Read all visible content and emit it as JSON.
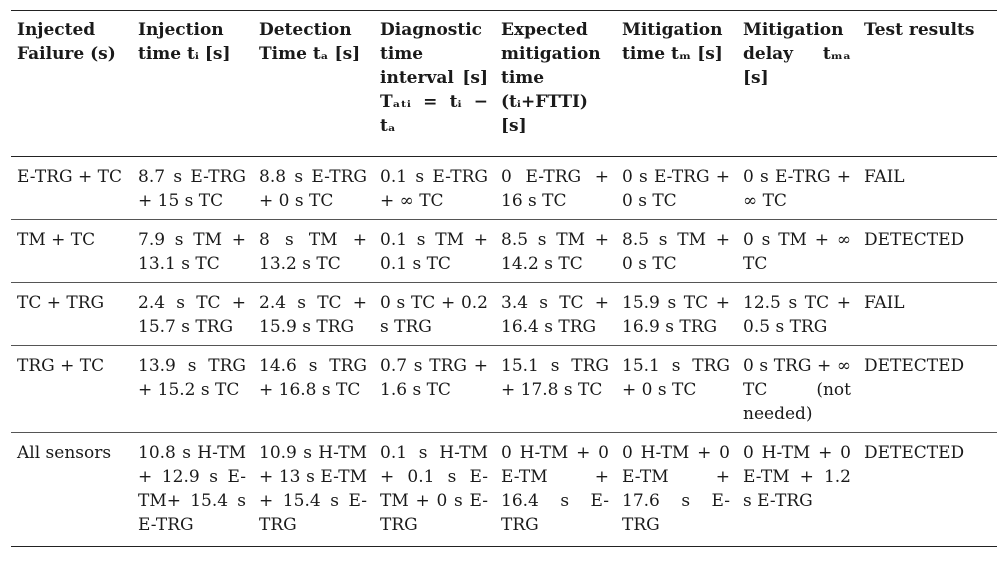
{
  "table": {
    "headers": [
      "Injected Failure (s)",
      "Injection time tᵢ [s]",
      "Detection Time tₐ [s]",
      "Diagnostic time interval [s] Tₐₜᵢ = tᵢ − tₐ",
      "Expected mitigation time (tᵢ+FTTI) [s]",
      "Mitigation time tₘ [s]",
      "Mitigation delay tₘₐ [s]",
      "Test results"
    ],
    "rows": [
      [
        "E-TRG + TC",
        "8.7 s E-TRG + 15 s TC",
        "8.8 s E-TRG + 0 s TC",
        "0.1 s E-TRG + ∞ TC",
        "0 E-TRG + 16 s TC",
        "0 s E-TRG + 0 s TC",
        "0 s E-TRG + ∞ TC",
        "FAIL"
      ],
      [
        "TM + TC",
        "7.9 s TM + 13.1 s TC",
        "8 s TM + 13.2 s TC",
        "0.1 s TM + 0.1 s TC",
        "8.5 s TM + 14.2 s TC",
        "8.5 s TM + 0 s TC",
        "0 s TM + ∞ TC",
        "DETECTED"
      ],
      [
        "TC + TRG",
        "2.4 s TC + 15.7 s TRG",
        "2.4 s TC + 15.9 s TRG",
        "0 s TC + 0.2 s TRG",
        "3.4 s TC + 16.4 s TRG",
        "15.9 s TC + 16.9 s TRG",
        "12.5 s TC + 0.5 s TRG",
        "FAIL"
      ],
      [
        "TRG + TC",
        "13.9 s TRG + 15.2 s TC",
        "14.6 s TRG + 16.8 s TC",
        "0.7 s TRG + 1.6 s TC",
        "15.1 s TRG + 17.8 s TC",
        "15.1 s TRG + 0 s TC",
        "0 s TRG + ∞ TC (not needed)",
        "DETECTED"
      ],
      [
        "All sensors",
        "10.8 s H-TM + 12.9 s E-TM+ 15.4 s E-TRG",
        "10.9 s H-TM + 13 s E-TM + 15.4 s E-TRG",
        "0.1 s H-TM + 0.1 s E-TM + 0 s E-TRG",
        "0 H-TM + 0 E-TM + 16.4 s E-TRG",
        "0 H-TM + 0 E-TM + 17.6 s E-TRG",
        "0 H-TM + 0 E-TM + 1.2 s E-TRG",
        "DETECTED"
      ]
    ]
  }
}
